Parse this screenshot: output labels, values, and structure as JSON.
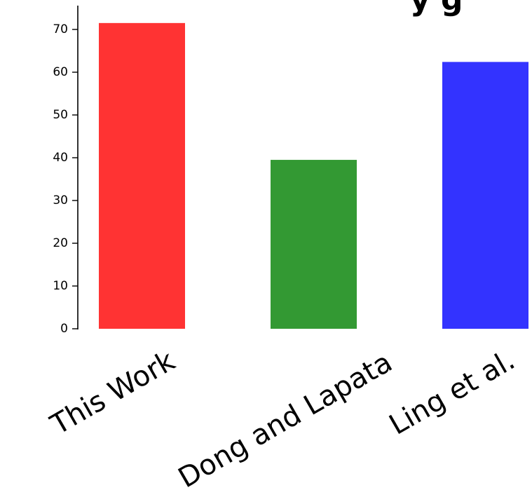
{
  "chart_data": {
    "type": "bar",
    "title": "",
    "title_fragment": "y g",
    "xlabel": "",
    "ylabel": "",
    "categories": [
      "This Work",
      "Dong and Lapata",
      "Ling et al."
    ],
    "values": [
      71.5,
      39.5,
      62.4
    ],
    "colors": [
      "#ff3333",
      "#339933",
      "#3333ff"
    ],
    "ylim": [
      0,
      75
    ],
    "yticks": [
      0,
      10,
      20,
      30,
      40,
      50,
      60,
      70
    ],
    "ytick_labels": [
      "0",
      "10",
      "20",
      "30",
      "40",
      "50",
      "60",
      "70"
    ],
    "grid": false,
    "legend": "none"
  }
}
